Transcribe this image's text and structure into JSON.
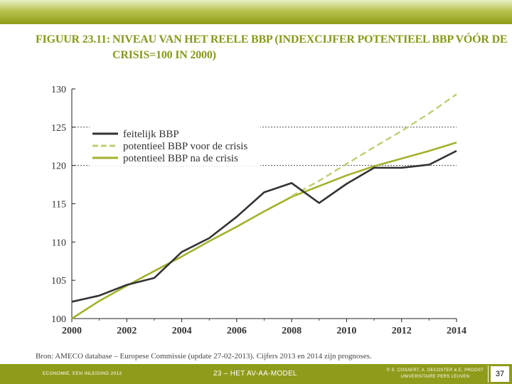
{
  "title": {
    "prefix": "FIGUUR 23.11:",
    "line1": "NIVEAU VAN HET REELE BBP (INDEXCIJFER POTENTIEEL BBP VÓÓR DE",
    "line2": "CRISIS=100 IN 2000)"
  },
  "chart_data": {
    "type": "line",
    "title": "FIGUUR 23.11: NIVEAU VAN HET REELE BBP (INDEXCIJFER POTENTIEEL BBP VÓÓR DE CRISIS=100 IN 2000)",
    "xlabel": "",
    "ylabel": "",
    "xlim": [
      2000,
      2014
    ],
    "ylim": [
      100,
      130
    ],
    "xticks": [
      2000,
      2002,
      2004,
      2006,
      2008,
      2010,
      2012,
      2014
    ],
    "yticks": [
      100,
      105,
      110,
      115,
      120,
      125,
      130
    ],
    "reference_lines": [
      120,
      125
    ],
    "legend_position": "top-left",
    "series": [
      {
        "name": "feitelijk BBP",
        "color": "#333333",
        "style": "solid",
        "x": [
          2000,
          2001,
          2002,
          2003,
          2004,
          2005,
          2006,
          2007,
          2008,
          2009,
          2010,
          2011,
          2012,
          2013,
          2014
        ],
        "y": [
          102.2,
          103.0,
          104.4,
          105.3,
          108.7,
          110.5,
          113.3,
          116.5,
          117.7,
          115.1,
          117.6,
          119.7,
          119.7,
          120.1,
          121.9
        ]
      },
      {
        "name": "potentieel BBP voor de crisis",
        "color": "#c2cd72",
        "style": "dashed",
        "x": [
          2008,
          2009,
          2010,
          2011,
          2012,
          2013,
          2014
        ],
        "y": [
          116.0,
          118.0,
          120.2,
          122.4,
          124.5,
          126.8,
          129.3
        ]
      },
      {
        "name": "potentieel BBP na de crisis",
        "color": "#a3b12c",
        "style": "solid",
        "x": [
          2000,
          2001,
          2002,
          2003,
          2004,
          2005,
          2006,
          2007,
          2008,
          2009,
          2010,
          2011,
          2012,
          2013,
          2014
        ],
        "y": [
          100.0,
          102.3,
          104.3,
          106.2,
          108.1,
          110.1,
          112.0,
          114.0,
          115.9,
          117.3,
          118.7,
          119.9,
          120.9,
          121.9,
          123.0
        ]
      }
    ]
  },
  "source": "Bron: AMECO database – Europese Commissie (update 27-02-2013). Cijfers 2013 en 2014 zijn prognoses.",
  "footer": {
    "left": "ECONOMIE, EEN INLEIDING 2013",
    "middle": "23 – HET AV-AA-MODEL",
    "right_line1": "© S. COSAERT, A. DECOSTER & E. PROOST",
    "right_line2": "UNIVERSITAIRE PERS LEUVEN",
    "page": "37"
  }
}
